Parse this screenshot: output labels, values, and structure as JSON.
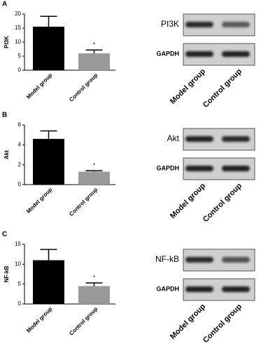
{
  "chart_data": [
    {
      "type": "bar",
      "panel": "A",
      "ylabel": "PI3K",
      "categories": [
        "Model group",
        "Control group"
      ],
      "values": [
        15.5,
        6
      ],
      "errors": [
        3.7,
        1.2
      ],
      "colors": [
        "#000000",
        "#999999"
      ],
      "annotation": "*",
      "ylim": [
        0,
        20
      ],
      "yticks": [
        0,
        5,
        10,
        15,
        20
      ]
    },
    {
      "type": "bar",
      "panel": "B",
      "ylabel": "Akt",
      "categories": [
        "Model group",
        "Control group"
      ],
      "values": [
        4.6,
        1.3
      ],
      "errors": [
        0.8,
        0.1
      ],
      "colors": [
        "#000000",
        "#999999"
      ],
      "annotation": "*",
      "ylim": [
        0,
        6
      ],
      "yticks": [
        0,
        2,
        4,
        6
      ]
    },
    {
      "type": "bar",
      "panel": "C",
      "ylabel": "NF-kB",
      "categories": [
        "Model group",
        "Control group"
      ],
      "values": [
        11,
        4.5
      ],
      "errors": [
        2.7,
        0.8
      ],
      "colors": [
        "#000000",
        "#999999"
      ],
      "annotation": "*",
      "ylim": [
        0,
        15
      ],
      "yticks": [
        0,
        5,
        10,
        15
      ]
    }
  ],
  "blots": [
    {
      "bands": [
        "PI3K",
        "GAPDH"
      ],
      "lanes": [
        "Model group",
        "Control group"
      ]
    },
    {
      "bands": [
        "Akt",
        "GAPDH"
      ],
      "lanes": [
        "Model group",
        "Control group"
      ]
    },
    {
      "bands": [
        "NF-kB",
        "GAPDH"
      ],
      "lanes": [
        "Model group",
        "Control group"
      ]
    }
  ]
}
